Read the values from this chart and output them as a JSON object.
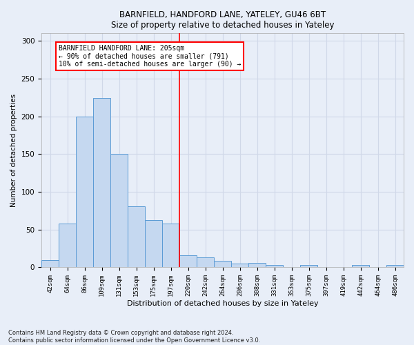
{
  "title1": "BARNFIELD, HANDFORD LANE, YATELEY, GU46 6BT",
  "title2": "Size of property relative to detached houses in Yateley",
  "xlabel": "Distribution of detached houses by size in Yateley",
  "ylabel": "Number of detached properties",
  "footnote": "Contains HM Land Registry data © Crown copyright and database right 2024.\nContains public sector information licensed under the Open Government Licence v3.0.",
  "categories": [
    "42sqm",
    "64sqm",
    "86sqm",
    "109sqm",
    "131sqm",
    "153sqm",
    "175sqm",
    "197sqm",
    "220sqm",
    "242sqm",
    "264sqm",
    "286sqm",
    "308sqm",
    "331sqm",
    "353sqm",
    "375sqm",
    "397sqm",
    "419sqm",
    "442sqm",
    "464sqm",
    "486sqm"
  ],
  "values": [
    10,
    58,
    200,
    224,
    150,
    81,
    63,
    58,
    16,
    13,
    9,
    5,
    6,
    3,
    0,
    3,
    0,
    0,
    3,
    0,
    3
  ],
  "bar_color": "#c5d8f0",
  "bar_edge_color": "#5b9bd5",
  "bar_edge_width": 0.7,
  "grid_color": "#d0d8e8",
  "ylim": [
    0,
    310
  ],
  "yticks": [
    0,
    50,
    100,
    150,
    200,
    250,
    300
  ],
  "vline_x_index": 7.5,
  "vline_color": "red",
  "annotation_title": "BARNFIELD HANDFORD LANE: 205sqm",
  "annotation_line1": "← 90% of detached houses are smaller (791)",
  "annotation_line2": "10% of semi-detached houses are larger (90) →",
  "bg_color": "#e8eef8",
  "plot_bg_color": "#e8eef8"
}
